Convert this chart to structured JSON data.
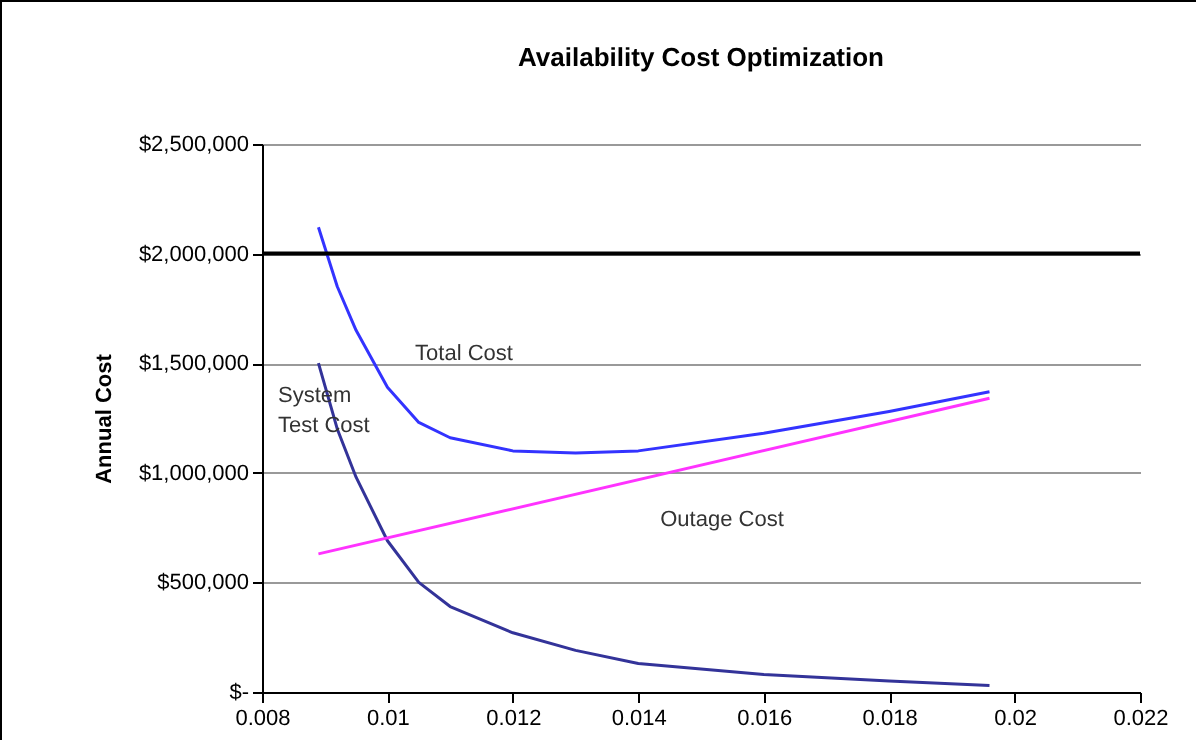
{
  "chart_data": {
    "type": "line",
    "title": "Availability Cost Optimization",
    "ylabel": "Annual Cost",
    "series": [
      {
        "name": "Total Cost",
        "color": "#3333ff",
        "x": [
          0.0089,
          0.0092,
          0.0095,
          0.01,
          0.0105,
          0.011,
          0.012,
          0.013,
          0.014,
          0.016,
          0.018,
          0.0196
        ],
        "values": [
          2120000,
          1850000,
          1650000,
          1390000,
          1230000,
          1160000,
          1100000,
          1090000,
          1100000,
          1180000,
          1280000,
          1370000
        ]
      },
      {
        "name": "System\nTest Cost",
        "color": "#333399",
        "x": [
          0.0089,
          0.0092,
          0.0095,
          0.01,
          0.0105,
          0.011,
          0.012,
          0.013,
          0.014,
          0.016,
          0.018,
          0.0196
        ],
        "values": [
          1500000,
          1200000,
          980000,
          690000,
          500000,
          390000,
          270000,
          190000,
          130000,
          80000,
          50000,
          30000
        ]
      },
      {
        "name": "Outage Cost",
        "color": "#ff33ff",
        "x": [
          0.0089,
          0.0196
        ],
        "values": [
          630000,
          1340000
        ]
      }
    ],
    "xlim": [
      0.008,
      0.022
    ],
    "xticks": [
      0.008,
      0.01,
      0.012,
      0.014,
      0.016,
      0.018,
      0.02,
      0.022
    ],
    "ylim": [
      0,
      2500000
    ],
    "yticks": [
      {
        "value": 0,
        "label": "$-"
      },
      {
        "value": 500000,
        "label": "$500,000"
      },
      {
        "value": 1000000,
        "label": "$1,000,000"
      },
      {
        "value": 1500000,
        "label": "$1,500,000"
      },
      {
        "value": 2000000,
        "label": "$2,000,000"
      },
      {
        "value": 2500000,
        "label": "$2,500,000"
      }
    ],
    "grid": "y",
    "legend": false,
    "marker": "none",
    "line_style": "solid",
    "ref_lines": [
      {
        "axis": "y",
        "value": 2000000,
        "color": "#000000"
      }
    ]
  }
}
